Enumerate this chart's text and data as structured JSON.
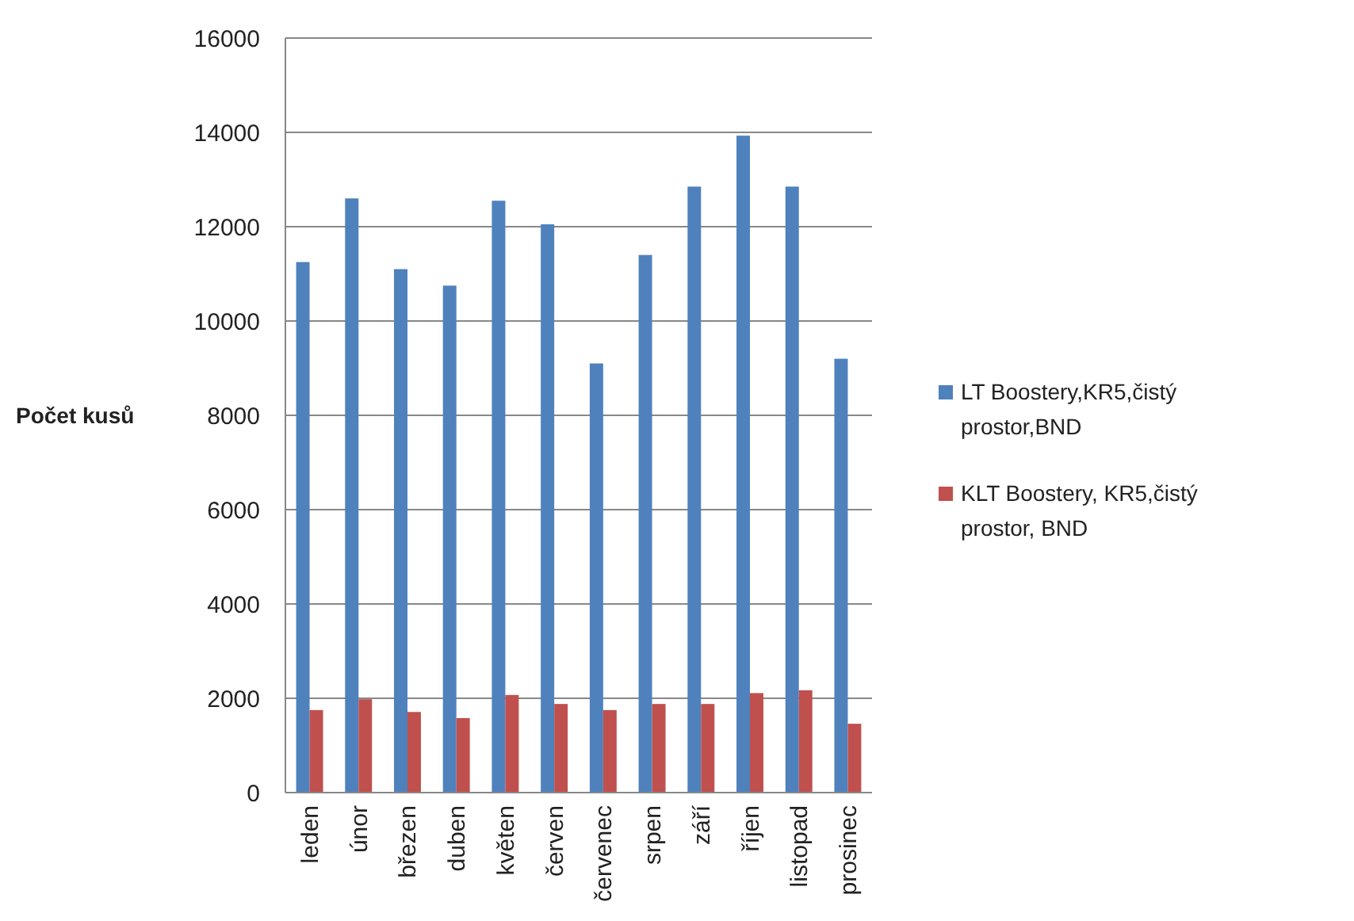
{
  "chart_data": {
    "type": "bar",
    "ylabel": "Počet kusů",
    "categories": [
      "leden",
      "únor",
      "březen",
      "duben",
      "květen",
      "červen",
      "červenec",
      "srpen",
      "září",
      "říjen",
      "listopad",
      "prosinec"
    ],
    "series": [
      {
        "name": "LT Boostery,KR5,čistý prostor,BND",
        "color": "#4f81bd",
        "values": [
          11250,
          12600,
          11100,
          10750,
          12550,
          12050,
          9100,
          11400,
          12850,
          13930,
          12850,
          9200
        ]
      },
      {
        "name": "KLT Boostery, KR5,čistý prostor, BND",
        "color": "#c0504d",
        "values": [
          1750,
          1980,
          1710,
          1580,
          2070,
          1880,
          1750,
          1880,
          1880,
          2110,
          2170,
          1460
        ]
      }
    ],
    "ylim": [
      0,
      16000
    ],
    "yticks": [
      0,
      2000,
      4000,
      6000,
      8000,
      10000,
      12000,
      14000,
      16000
    ],
    "grid": "y",
    "legend": "right"
  }
}
